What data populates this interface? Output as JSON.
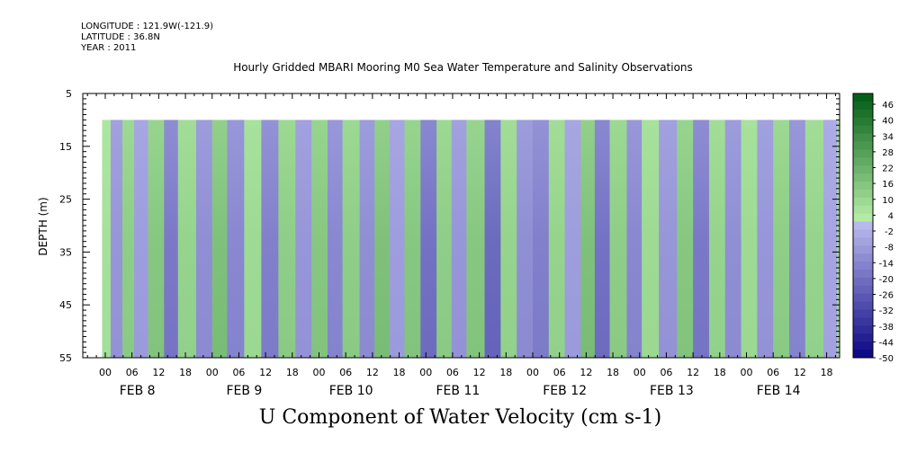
{
  "header": {
    "longitude": "LONGITUDE : 121.9W(-121.9)",
    "latitude": "LATITUDE : 36.8N",
    "year": "YEAR : 2011"
  },
  "chart_data": {
    "type": "heatmap",
    "title": "Hourly Gridded MBARI Mooring M0 Sea Water Temperature and Salinity Observations",
    "xlabel": "U Component of Water Velocity (cm s-1)",
    "ylabel": "DEPTH (m)",
    "ylim": [
      5,
      55
    ],
    "y_inverted": true,
    "y_ticks": [
      5,
      15,
      25,
      35,
      45,
      55
    ],
    "y_tick_labels": [
      "5",
      "15",
      "25",
      "35",
      "45",
      "55"
    ],
    "x_hour_ticks": [
      "00",
      "06",
      "12",
      "18",
      "00",
      "06",
      "12",
      "18",
      "00",
      "06",
      "12",
      "18",
      "00",
      "06",
      "12",
      "18",
      "00",
      "06",
      "12",
      "18",
      "00",
      "06",
      "12",
      "18",
      "00",
      "06",
      "12",
      "18"
    ],
    "x_day_labels": [
      "FEB  8",
      "FEB  9",
      "FEB 10",
      "FEB 11",
      "FEB 12",
      "FEB 13",
      "FEB 14"
    ],
    "data_depth_range": [
      10,
      55
    ],
    "colorbar": {
      "labels": [
        "46",
        "40",
        "34",
        "28",
        "22",
        "16",
        "10",
        "4",
        "-2",
        "-8",
        "-14",
        "-20",
        "-26",
        "-32",
        "-38",
        "-44",
        "-50"
      ],
      "range": [
        -50,
        49
      ]
    },
    "bands": [
      {
        "day": 7.97,
        "value": 6
      },
      {
        "day": 8.05,
        "value": -10
      },
      {
        "day": 8.16,
        "value": 12
      },
      {
        "day": 8.27,
        "value": -8
      },
      {
        "day": 8.4,
        "value": 14
      },
      {
        "day": 8.55,
        "value": -18
      },
      {
        "day": 8.68,
        "value": 10
      },
      {
        "day": 8.85,
        "value": -12
      },
      {
        "day": 9.0,
        "value": 16
      },
      {
        "day": 9.14,
        "value": -14
      },
      {
        "day": 9.3,
        "value": 8
      },
      {
        "day": 9.46,
        "value": -16
      },
      {
        "day": 9.62,
        "value": 12
      },
      {
        "day": 9.78,
        "value": -10
      },
      {
        "day": 9.93,
        "value": 14
      },
      {
        "day": 10.08,
        "value": -14
      },
      {
        "day": 10.22,
        "value": 12
      },
      {
        "day": 10.38,
        "value": -12
      },
      {
        "day": 10.52,
        "value": 16
      },
      {
        "day": 10.66,
        "value": -8
      },
      {
        "day": 10.8,
        "value": 14
      },
      {
        "day": 10.95,
        "value": -20
      },
      {
        "day": 11.1,
        "value": 12
      },
      {
        "day": 11.24,
        "value": -10
      },
      {
        "day": 11.38,
        "value": 14
      },
      {
        "day": 11.55,
        "value": -22
      },
      {
        "day": 11.7,
        "value": 10
      },
      {
        "day": 11.85,
        "value": -12
      },
      {
        "day": 12.0,
        "value": -16
      },
      {
        "day": 12.15,
        "value": 10
      },
      {
        "day": 12.3,
        "value": -8
      },
      {
        "day": 12.45,
        "value": 16
      },
      {
        "day": 12.58,
        "value": -20
      },
      {
        "day": 12.72,
        "value": 12
      },
      {
        "day": 12.88,
        "value": -14
      },
      {
        "day": 13.02,
        "value": 8
      },
      {
        "day": 13.18,
        "value": -10
      },
      {
        "day": 13.35,
        "value": 14
      },
      {
        "day": 13.5,
        "value": -18
      },
      {
        "day": 13.65,
        "value": 10
      },
      {
        "day": 13.8,
        "value": -12
      },
      {
        "day": 13.95,
        "value": 8
      },
      {
        "day": 14.1,
        "value": -10
      },
      {
        "day": 14.25,
        "value": 12
      },
      {
        "day": 14.4,
        "value": -14
      },
      {
        "day": 14.55,
        "value": 10
      },
      {
        "day": 14.72,
        "value": -6
      },
      {
        "day": 14.85,
        "value": 6
      }
    ]
  }
}
